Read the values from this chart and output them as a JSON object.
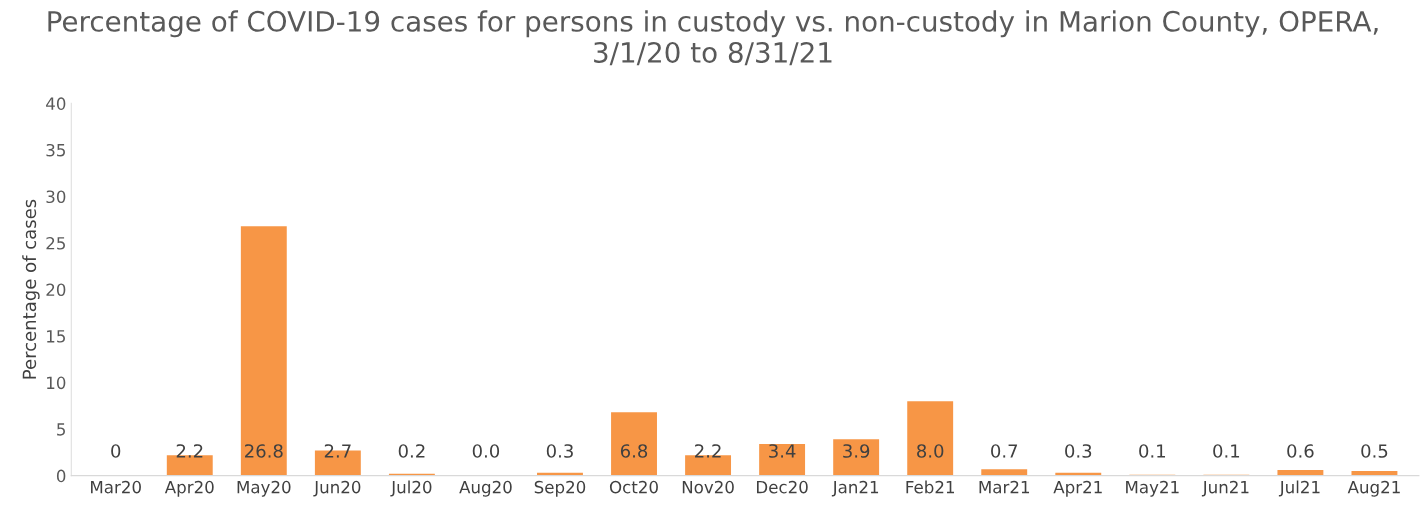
{
  "chart_data": {
    "type": "bar",
    "title": "Percentage of COVID-19 cases for persons in custody vs. non-custody in Marion County, OPERA, 3/1/20 to 8/31/21",
    "ylabel": "Percentage of cases",
    "categories": [
      "Mar20",
      "Apr20",
      "May20",
      "Jun20",
      "Jul20",
      "Aug20",
      "Sep20",
      "Oct20",
      "Nov20",
      "Dec20",
      "Jan21",
      "Feb21",
      "Mar21",
      "Apr21",
      "May21",
      "Jun21",
      "Jul21",
      "Aug21"
    ],
    "values": [
      0,
      2.2,
      26.8,
      2.7,
      0.2,
      0.0,
      0.3,
      6.8,
      2.2,
      3.4,
      3.9,
      8.0,
      0.7,
      0.3,
      0.1,
      0.1,
      0.6,
      0.5
    ],
    "value_labels": [
      "0",
      "2.2",
      "26.8",
      "2.7",
      "0.2",
      "0.0",
      "0.3",
      "6.8",
      "2.2",
      "3.4",
      "3.9",
      "8.0",
      "0.7",
      "0.3",
      "0.1",
      "0.1",
      "0.6",
      "0.5"
    ],
    "color": "#f79646",
    "ylim": [
      0,
      40
    ],
    "yticks": [
      0,
      5,
      10,
      15,
      20,
      25,
      30,
      35,
      40
    ],
    "grid": false,
    "legend": false
  }
}
